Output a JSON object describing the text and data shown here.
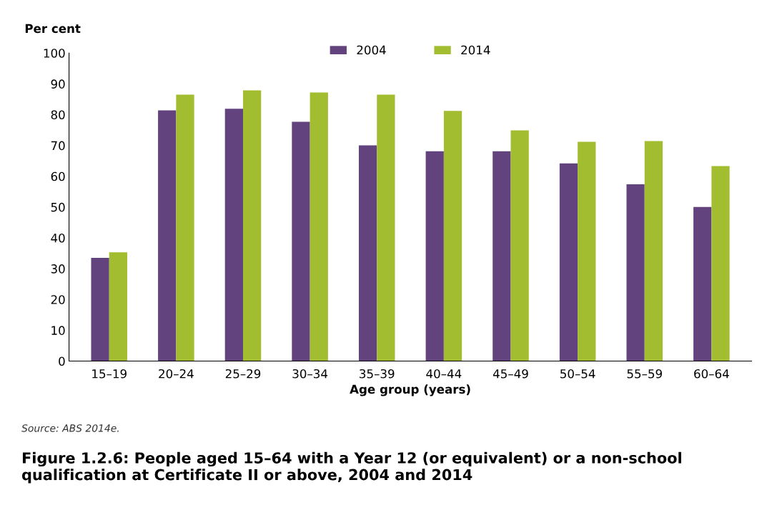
{
  "chart_data": {
    "type": "bar",
    "title": "Figure 1.2.6: People aged 15–64 with a Year 12 (or equivalent) or a non-school qualification at Certificate II or above, 2004 and 2014",
    "xlabel": "Age group (years)",
    "ylabel": "Per cent",
    "categories": [
      "15–19",
      "20–24",
      "25–29",
      "30–34",
      "35–39",
      "40–44",
      "45–49",
      "50–54",
      "55–59",
      "60–64"
    ],
    "series": [
      {
        "name": "2004",
        "color": "#62437d",
        "values": [
          33.5,
          81.4,
          81.9,
          77.7,
          70,
          68.1,
          68.1,
          64.2,
          57.4,
          50
        ]
      },
      {
        "name": "2014",
        "color": "#a3bd31",
        "values": [
          35.3,
          86.5,
          87.9,
          87.2,
          86.5,
          81.2,
          74.9,
          71.2,
          71.4,
          63.3
        ]
      }
    ],
    "ylim": [
      0,
      100
    ],
    "yticks": [
      0,
      10,
      20,
      30,
      40,
      50,
      60,
      70,
      80,
      90,
      100
    ],
    "grid": false,
    "legend": "top",
    "annotations": [
      "Source: ABS 2014e."
    ]
  }
}
